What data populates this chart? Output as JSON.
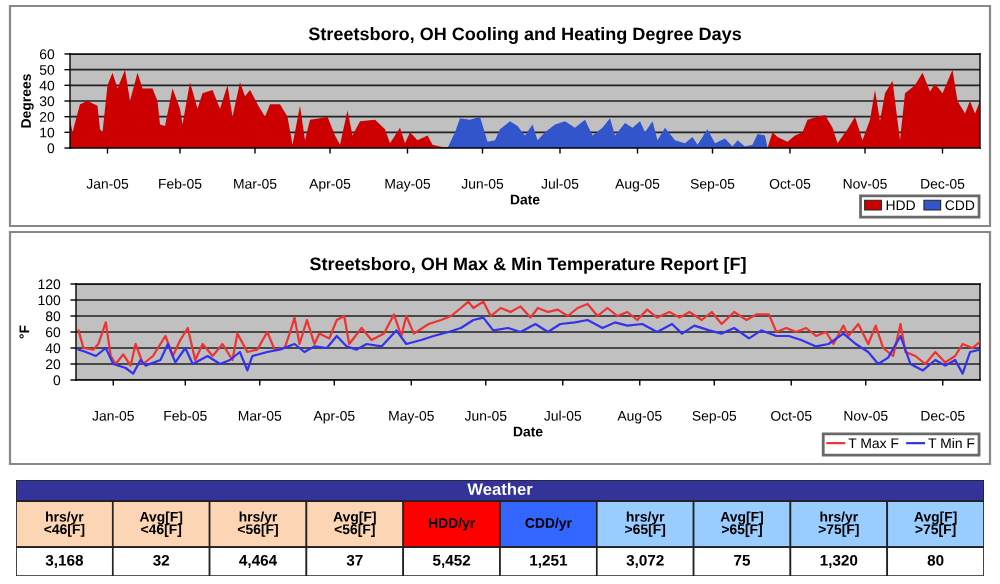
{
  "chart_data": [
    {
      "type": "area",
      "title": "Streetsboro, OH Cooling and Heating Degree Days",
      "xlabel": "Date",
      "ylabel": "Degrees",
      "xlim": [
        "2005-01-01",
        "2005-12-31"
      ],
      "ylim": [
        0,
        60
      ],
      "yticks": [
        0,
        10,
        20,
        30,
        40,
        50,
        60
      ],
      "xticks": [
        {
          "value": "2005-01-16",
          "label": "Jan-05"
        },
        {
          "value": "2005-02-14",
          "label": "Feb-05"
        },
        {
          "value": "2005-03-16",
          "label": "Mar-05"
        },
        {
          "value": "2005-04-15",
          "label": "Apr-05"
        },
        {
          "value": "2005-05-16",
          "label": "May-05"
        },
        {
          "value": "2005-06-15",
          "label": "Jun-05"
        },
        {
          "value": "2005-07-16",
          "label": "Jul-05"
        },
        {
          "value": "2005-08-16",
          "label": "Aug-05"
        },
        {
          "value": "2005-09-15",
          "label": "Sep-05"
        },
        {
          "value": "2005-10-16",
          "label": "Oct-05"
        },
        {
          "value": "2005-11-15",
          "label": "Nov-05"
        },
        {
          "value": "2005-12-16",
          "label": "Dec-05"
        }
      ],
      "grid": "y",
      "legend": "bottom right",
      "series": [
        {
          "name": "HDD",
          "color": "#cc0000",
          "x": [
            "2005-01-01",
            "2005-01-02",
            "2005-01-05",
            "2005-01-08",
            "2005-01-12",
            "2005-01-13",
            "2005-01-14",
            "2005-01-16",
            "2005-01-18",
            "2005-01-20",
            "2005-01-23",
            "2005-01-25",
            "2005-01-28",
            "2005-01-30",
            "2005-02-03",
            "2005-02-05",
            "2005-02-06",
            "2005-02-08",
            "2005-02-11",
            "2005-02-14",
            "2005-02-15",
            "2005-02-18",
            "2005-02-21",
            "2005-02-23",
            "2005-02-27",
            "2005-03-02",
            "2005-03-05",
            "2005-03-07",
            "2005-03-10",
            "2005-03-12",
            "2005-03-14",
            "2005-03-17",
            "2005-03-20",
            "2005-03-22",
            "2005-03-26",
            "2005-03-29",
            "2005-03-31",
            "2005-04-03",
            "2005-04-05",
            "2005-04-07",
            "2005-04-11",
            "2005-04-14",
            "2005-04-17",
            "2005-04-19",
            "2005-04-22",
            "2005-04-24",
            "2005-04-27",
            "2005-05-03",
            "2005-05-07",
            "2005-05-09",
            "2005-05-13",
            "2005-05-15",
            "2005-05-17",
            "2005-05-20",
            "2005-05-24",
            "2005-05-26",
            "2005-05-29",
            "2005-06-01",
            "2005-10-07",
            "2005-10-09",
            "2005-10-11",
            "2005-10-15",
            "2005-10-18",
            "2005-10-21",
            "2005-10-23",
            "2005-10-27",
            "2005-10-30",
            "2005-11-02",
            "2005-11-04",
            "2005-11-08",
            "2005-11-11",
            "2005-11-14",
            "2005-11-17",
            "2005-11-19",
            "2005-11-21",
            "2005-11-23",
            "2005-11-26",
            "2005-11-29",
            "2005-12-01",
            "2005-12-05",
            "2005-12-08",
            "2005-12-11",
            "2005-12-13",
            "2005-12-16",
            "2005-12-20",
            "2005-12-22",
            "2005-12-25",
            "2005-12-27",
            "2005-12-29",
            "2005-12-31"
          ],
          "values": [
            18,
            10,
            28,
            30,
            27,
            12,
            10,
            40,
            48,
            38,
            50,
            30,
            48,
            38,
            38,
            30,
            15,
            14,
            38,
            25,
            15,
            42,
            25,
            35,
            37,
            25,
            40,
            20,
            42,
            33,
            37,
            28,
            20,
            28,
            28,
            20,
            2,
            27,
            5,
            18,
            19,
            20,
            8,
            2,
            24,
            8,
            17,
            18,
            12,
            3,
            13,
            3,
            10,
            5,
            8,
            2,
            1,
            0,
            0,
            10,
            7,
            4,
            8,
            10,
            18,
            20,
            21,
            13,
            3,
            12,
            20,
            5,
            18,
            37,
            17,
            35,
            43,
            5,
            35,
            40,
            48,
            36,
            41,
            35,
            50,
            30,
            22,
            30,
            22,
            30
          ]
        },
        {
          "name": "CDD",
          "color": "#3355cc",
          "x": [
            "2005-06-01",
            "2005-06-04",
            "2005-06-06",
            "2005-06-10",
            "2005-06-14",
            "2005-06-17",
            "2005-06-20",
            "2005-06-22",
            "2005-06-26",
            "2005-06-29",
            "2005-07-02",
            "2005-07-05",
            "2005-07-07",
            "2005-07-10",
            "2005-07-14",
            "2005-07-18",
            "2005-07-22",
            "2005-07-26",
            "2005-07-29",
            "2005-08-02",
            "2005-08-05",
            "2005-08-07",
            "2005-08-11",
            "2005-08-14",
            "2005-08-17",
            "2005-08-19",
            "2005-08-22",
            "2005-08-24",
            "2005-08-27",
            "2005-08-31",
            "2005-09-04",
            "2005-09-07",
            "2005-09-09",
            "2005-09-13",
            "2005-09-16",
            "2005-09-20",
            "2005-09-23",
            "2005-09-25",
            "2005-09-28",
            "2005-10-01",
            "2005-10-03",
            "2005-10-06",
            "2005-10-07"
          ],
          "values": [
            0,
            10,
            19,
            18,
            20,
            4,
            5,
            12,
            17,
            14,
            8,
            15,
            5,
            10,
            15,
            17,
            13,
            18,
            8,
            13,
            19,
            8,
            16,
            13,
            17,
            10,
            17,
            5,
            13,
            5,
            3,
            7,
            2,
            12,
            3,
            6,
            1,
            5,
            1,
            2,
            9,
            8,
            0
          ]
        }
      ]
    },
    {
      "type": "line",
      "title": "Streetsboro, OH Max & Min Temperature Report [F]",
      "xlabel": "Date",
      "ylabel": "°F",
      "xlim": [
        "2005-01-01",
        "2005-12-31"
      ],
      "ylim": [
        0,
        120
      ],
      "yticks": [
        0,
        20,
        40,
        60,
        80,
        100,
        120
      ],
      "xticks": [
        {
          "value": "2005-01-16",
          "label": "Jan-05"
        },
        {
          "value": "2005-02-14",
          "label": "Feb-05"
        },
        {
          "value": "2005-03-16",
          "label": "Mar-05"
        },
        {
          "value": "2005-04-15",
          "label": "Apr-05"
        },
        {
          "value": "2005-05-16",
          "label": "May-05"
        },
        {
          "value": "2005-06-15",
          "label": "Jun-05"
        },
        {
          "value": "2005-07-16",
          "label": "Jul-05"
        },
        {
          "value": "2005-08-16",
          "label": "Aug-05"
        },
        {
          "value": "2005-09-15",
          "label": "Sep-05"
        },
        {
          "value": "2005-10-16",
          "label": "Oct-05"
        },
        {
          "value": "2005-11-15",
          "label": "Nov-05"
        },
        {
          "value": "2005-12-16",
          "label": "Dec-05"
        }
      ],
      "grid": "y",
      "legend": "bottom right",
      "marker": "none",
      "line_style": "solid",
      "series": [
        {
          "name": "T Max F",
          "color": "#ee3333",
          "x": [
            "2005-01-02",
            "2005-01-04",
            "2005-01-08",
            "2005-01-10",
            "2005-01-13",
            "2005-01-15",
            "2005-01-17",
            "2005-01-20",
            "2005-01-23",
            "2005-01-25",
            "2005-01-28",
            "2005-02-01",
            "2005-02-06",
            "2005-02-09",
            "2005-02-12",
            "2005-02-15",
            "2005-02-18",
            "2005-02-21",
            "2005-02-25",
            "2005-03-01",
            "2005-03-05",
            "2005-03-07",
            "2005-03-11",
            "2005-03-15",
            "2005-03-19",
            "2005-03-22",
            "2005-03-26",
            "2005-03-28",
            "2005-03-30",
            "2005-04-01",
            "2005-04-04",
            "2005-04-07",
            "2005-04-09",
            "2005-04-13",
            "2005-04-16",
            "2005-04-19",
            "2005-04-21",
            "2005-04-26",
            "2005-04-30",
            "2005-05-05",
            "2005-05-09",
            "2005-05-12",
            "2005-05-14",
            "2005-05-17",
            "2005-05-23",
            "2005-05-28",
            "2005-06-01",
            "2005-06-05",
            "2005-06-08",
            "2005-06-10",
            "2005-06-14",
            "2005-06-17",
            "2005-06-21",
            "2005-06-25",
            "2005-06-29",
            "2005-07-03",
            "2005-07-06",
            "2005-07-10",
            "2005-07-14",
            "2005-07-18",
            "2005-07-22",
            "2005-07-26",
            "2005-07-30",
            "2005-08-03",
            "2005-08-07",
            "2005-08-11",
            "2005-08-15",
            "2005-08-19",
            "2005-08-23",
            "2005-08-28",
            "2005-09-01",
            "2005-09-05",
            "2005-09-10",
            "2005-09-14",
            "2005-09-18",
            "2005-09-23",
            "2005-09-28",
            "2005-10-02",
            "2005-10-07",
            "2005-10-10",
            "2005-10-14",
            "2005-10-18",
            "2005-10-22",
            "2005-10-26",
            "2005-10-30",
            "2005-11-02",
            "2005-11-06",
            "2005-11-08",
            "2005-11-12",
            "2005-11-16",
            "2005-11-19",
            "2005-11-22",
            "2005-11-26",
            "2005-11-29",
            "2005-12-01",
            "2005-12-05",
            "2005-12-09",
            "2005-12-13",
            "2005-12-17",
            "2005-12-21",
            "2005-12-24",
            "2005-12-28",
            "2005-12-31"
          ],
          "values": [
            62,
            40,
            38,
            45,
            72,
            30,
            20,
            32,
            18,
            45,
            20,
            30,
            55,
            30,
            50,
            65,
            25,
            45,
            30,
            45,
            25,
            58,
            35,
            38,
            60,
            38,
            40,
            58,
            78,
            45,
            75,
            45,
            58,
            52,
            75,
            80,
            45,
            65,
            50,
            58,
            82,
            55,
            80,
            58,
            70,
            75,
            80,
            90,
            98,
            90,
            98,
            80,
            90,
            85,
            92,
            78,
            90,
            85,
            88,
            80,
            90,
            95,
            80,
            90,
            80,
            85,
            75,
            88,
            78,
            85,
            78,
            85,
            75,
            85,
            70,
            85,
            75,
            82,
            82,
            60,
            65,
            60,
            65,
            55,
            60,
            45,
            68,
            55,
            70,
            45,
            68,
            40,
            30,
            70,
            35,
            30,
            20,
            35,
            22,
            30,
            45,
            40,
            48
          ]
        },
        {
          "name": "T Min F",
          "color": "#3333ee",
          "x": [
            "2005-01-02",
            "2005-01-05",
            "2005-01-09",
            "2005-01-13",
            "2005-01-16",
            "2005-01-21",
            "2005-01-24",
            "2005-01-27",
            "2005-01-29",
            "2005-02-04",
            "2005-02-07",
            "2005-02-10",
            "2005-02-14",
            "2005-02-17",
            "2005-02-23",
            "2005-02-28",
            "2005-03-04",
            "2005-03-08",
            "2005-03-11",
            "2005-03-13",
            "2005-03-19",
            "2005-03-24",
            "2005-03-30",
            "2005-04-03",
            "2005-04-07",
            "2005-04-12",
            "2005-04-16",
            "2005-04-20",
            "2005-04-24",
            "2005-04-28",
            "2005-05-04",
            "2005-05-10",
            "2005-05-14",
            "2005-05-20",
            "2005-05-25",
            "2005-05-31",
            "2005-06-05",
            "2005-06-10",
            "2005-06-14",
            "2005-06-18",
            "2005-06-24",
            "2005-06-29",
            "2005-07-05",
            "2005-07-10",
            "2005-07-15",
            "2005-07-21",
            "2005-07-26",
            "2005-08-01",
            "2005-08-06",
            "2005-08-11",
            "2005-08-17",
            "2005-08-23",
            "2005-08-29",
            "2005-09-02",
            "2005-09-07",
            "2005-09-13",
            "2005-09-18",
            "2005-09-23",
            "2005-09-29",
            "2005-10-04",
            "2005-10-10",
            "2005-10-15",
            "2005-10-20",
            "2005-10-26",
            "2005-10-31",
            "2005-11-06",
            "2005-11-11",
            "2005-11-16",
            "2005-11-20",
            "2005-11-24",
            "2005-11-29",
            "2005-12-03",
            "2005-12-08",
            "2005-12-13",
            "2005-12-17",
            "2005-12-21",
            "2005-12-24",
            "2005-12-27",
            "2005-12-31"
          ],
          "values": [
            38,
            35,
            30,
            40,
            20,
            15,
            8,
            25,
            18,
            25,
            45,
            22,
            40,
            20,
            30,
            20,
            25,
            35,
            12,
            30,
            35,
            38,
            45,
            35,
            42,
            40,
            55,
            42,
            38,
            45,
            42,
            62,
            45,
            50,
            55,
            60,
            65,
            75,
            78,
            62,
            65,
            60,
            70,
            60,
            70,
            72,
            75,
            65,
            72,
            68,
            70,
            60,
            70,
            58,
            68,
            62,
            58,
            65,
            52,
            62,
            55,
            55,
            50,
            42,
            45,
            58,
            45,
            35,
            20,
            28,
            55,
            20,
            12,
            25,
            18,
            25,
            8,
            35,
            38
          ]
        }
      ]
    },
    {
      "type": "other",
      "title": "Weather",
      "categories": [
        "hrs/yr <46[F]",
        "Avg[F] <46[F]",
        "hrs/yr <56[F]",
        "Avg[F] <56[F]",
        "HDD/yr",
        "CDD/yr",
        "hrs/yr >65[F]",
        "Avg[F] >65[F]",
        "hrs/yr >75[F]",
        "Avg[F] >75[F]"
      ],
      "value_labels": [
        "3,168",
        "32",
        "4,464",
        "37",
        "5,452",
        "1,251",
        "3,072",
        "75",
        "1,320",
        "80"
      ],
      "colors": [
        "#fcd5b4",
        "#fcd5b4",
        "#fcd5b4",
        "#fcd5b4",
        "#ff0000",
        "#3366ff",
        "#99ccff",
        "#99ccff",
        "#99ccff",
        "#99ccff"
      ]
    }
  ]
}
